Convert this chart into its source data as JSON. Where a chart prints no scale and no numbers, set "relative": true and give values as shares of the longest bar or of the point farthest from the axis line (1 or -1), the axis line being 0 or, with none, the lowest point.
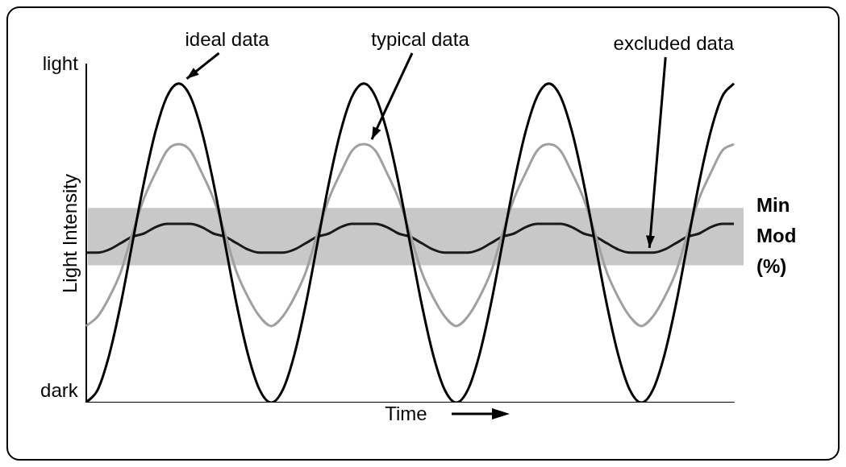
{
  "chart_data": {
    "type": "line",
    "xlabel": "Time",
    "ylabel": "Light Intensity",
    "relative": true,
    "annotations": [
      "light",
      "dark"
    ],
    "categories": [
      null,
      null,
      null,
      null,
      null,
      null,
      null,
      null,
      null,
      null,
      null,
      null,
      null,
      null,
      null,
      null,
      null,
      null,
      null,
      null,
      null,
      null,
      null,
      null,
      null,
      null,
      null,
      null,
      null,
      null,
      null,
      null,
      null,
      null,
      null,
      null,
      null,
      null,
      null,
      null,
      null,
      null,
      null,
      null,
      null,
      null,
      null,
      null,
      null,
      null,
      null,
      null,
      null,
      null,
      null,
      null,
      null
    ],
    "grid": false,
    "legend": false,
    "marker": "none",
    "line_style": "solid",
    "series": [
      {
        "name": "ideal data",
        "color": "#000000",
        "values": [
          0,
          0.04,
          0.15,
          0.31,
          0.5,
          0.69,
          0.85,
          0.96,
          1,
          0.96,
          0.85,
          0.69,
          0.5,
          0.31,
          0.15,
          0.04,
          0,
          0.04,
          0.15,
          0.31,
          0.5,
          0.69,
          0.85,
          0.96,
          1,
          0.96,
          0.85,
          0.69,
          0.5,
          0.31,
          0.15,
          0.04,
          0,
          0.04,
          0.15,
          0.31,
          0.5,
          0.69,
          0.85,
          0.96,
          1,
          0.96,
          0.85,
          0.69,
          0.5,
          0.31,
          0.15,
          0.04,
          0,
          0.04,
          0.15,
          0.31,
          0.5,
          0.69,
          0.85,
          0.96,
          1
        ]
      },
      {
        "name": "typical data",
        "color": "#a0a0a0",
        "values": [
          0.24,
          0.27,
          0.33,
          0.41,
          0.53,
          0.64,
          0.72,
          0.79,
          0.81,
          0.79,
          0.72,
          0.64,
          0.53,
          0.41,
          0.33,
          0.27,
          0.24,
          0.27,
          0.33,
          0.41,
          0.53,
          0.64,
          0.72,
          0.79,
          0.81,
          0.79,
          0.72,
          0.64,
          0.53,
          0.41,
          0.33,
          0.27,
          0.24,
          0.27,
          0.33,
          0.41,
          0.53,
          0.64,
          0.72,
          0.79,
          0.81,
          0.79,
          0.72,
          0.64,
          0.53,
          0.41,
          0.33,
          0.27,
          0.24,
          0.27,
          0.33,
          0.41,
          0.53,
          0.64,
          0.72,
          0.79,
          0.81
        ]
      },
      {
        "name": "excluded data",
        "color": "#1a1a1a",
        "values": [
          0.47,
          0.47,
          0.48,
          0.5,
          0.52,
          0.53,
          0.55,
          0.56,
          0.56,
          0.56,
          0.55,
          0.53,
          0.52,
          0.5,
          0.48,
          0.47,
          0.47,
          0.47,
          0.48,
          0.5,
          0.52,
          0.53,
          0.55,
          0.56,
          0.56,
          0.56,
          0.55,
          0.53,
          0.52,
          0.5,
          0.48,
          0.47,
          0.47,
          0.47,
          0.48,
          0.5,
          0.52,
          0.53,
          0.55,
          0.56,
          0.56,
          0.56,
          0.55,
          0.53,
          0.52,
          0.5,
          0.48,
          0.47,
          0.47,
          0.47,
          0.48,
          0.5,
          0.52,
          0.53,
          0.55,
          0.56,
          0.56
        ]
      }
    ],
    "bands": [
      {
        "axis": "y",
        "from": 0.43,
        "to": 0.61,
        "label": "Min Mod (%)",
        "color": "#c8c8c8"
      }
    ]
  }
}
